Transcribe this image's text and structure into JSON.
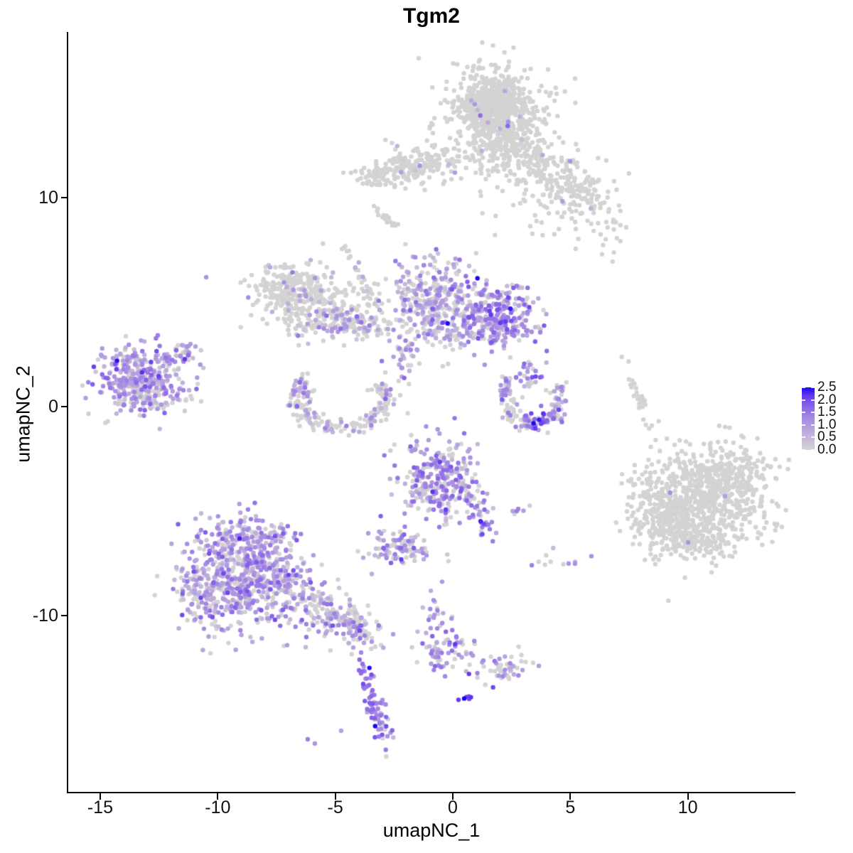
{
  "chart_data": {
    "type": "scatter",
    "title": "Tgm2",
    "xlabel": "umapNC_1",
    "ylabel": "umapNC_2",
    "x_ticks": [
      {
        "label": "-15",
        "value": -15
      },
      {
        "label": "-10",
        "value": -10
      },
      {
        "label": "-5",
        "value": -5
      },
      {
        "label": "0",
        "value": 0
      },
      {
        "label": "5",
        "value": 5
      },
      {
        "label": "10",
        "value": 10
      }
    ],
    "y_ticks": [
      {
        "label": "10",
        "value": 10
      },
      {
        "label": "0",
        "value": 0
      },
      {
        "label": "-10",
        "value": -10
      }
    ],
    "xlim": [
      -16.4,
      14.6
    ],
    "ylim": [
      -18.5,
      17.9
    ],
    "grid": false,
    "legend_position": "right",
    "legend": {
      "breaks": [
        {
          "label": "2.5",
          "value": 2.5
        },
        {
          "label": "2.0",
          "value": 2.0
        },
        {
          "label": "1.5",
          "value": 1.5
        },
        {
          "label": "1.0",
          "value": 1.0
        },
        {
          "label": "0.5",
          "value": 0.5
        },
        {
          "label": "0.0",
          "value": 0.0
        }
      ],
      "value_min": 0.0,
      "value_max": 2.5,
      "low_color": "#D3D3D3",
      "high_color": "#1A05F5",
      "gradient_stops": [
        {
          "t": 0.0,
          "color": "#D3D3D3"
        },
        {
          "t": 0.25,
          "color": "#C0B2DC"
        },
        {
          "t": 0.5,
          "color": "#A68BE2"
        },
        {
          "t": 0.75,
          "color": "#8059EA"
        },
        {
          "t": 0.875,
          "color": "#6236F0"
        },
        {
          "t": 1.0,
          "color": "#1A05F5"
        }
      ]
    },
    "point_radius_px": 3.2,
    "clusters": [
      {
        "name": "top-main",
        "n": 620,
        "x": 1.75,
        "y": 14.3,
        "sx": 0.8,
        "sy": 0.8,
        "p0": 0.99
      },
      {
        "name": "top-main-fringe",
        "n": 150,
        "x": 1.8,
        "y": 14.0,
        "sx": 1.5,
        "sy": 1.3,
        "p0": 0.98
      },
      {
        "name": "top-lower",
        "n": 170,
        "x": 2.4,
        "y": 12.2,
        "sx": 0.8,
        "sy": 0.9,
        "p0": 0.975
      },
      {
        "name": "top-left-arm",
        "n": 200,
        "x": -1.4,
        "y": 11.55,
        "sx": 1.35,
        "sy": 0.42,
        "rot": 10,
        "p0": 0.975
      },
      {
        "name": "top-left-arm-tip",
        "n": 35,
        "x": -3.2,
        "y": 11.0,
        "sx": 0.45,
        "sy": 0.3,
        "p0": 1
      },
      {
        "name": "top-right-arm",
        "n": 230,
        "x": 4.6,
        "y": 10.9,
        "sx": 1.5,
        "sy": 0.6,
        "rot": -44,
        "p0": 0.985
      },
      {
        "name": "top-right-sparse",
        "n": 55,
        "x": 4.9,
        "y": 9.3,
        "sx": 1.4,
        "sy": 0.9,
        "p0": 1
      },
      {
        "name": "top-sliver",
        "n": 22,
        "x": -2.7,
        "y": 8.85,
        "sx": 0.42,
        "sy": 0.1,
        "rot": -40,
        "p0": 1
      },
      {
        "name": "midleft-main",
        "n": 260,
        "x": -6.6,
        "y": 5.25,
        "sx": 0.95,
        "sy": 0.8,
        "p0": 0.9,
        "mean": 0.8
      },
      {
        "name": "midleft-top",
        "n": 55,
        "x": -6.9,
        "y": 6.0,
        "sx": 0.75,
        "sy": 0.28,
        "p0": 0.92
      },
      {
        "name": "midleft-arm",
        "n": 75,
        "x": -5.0,
        "y": 4.45,
        "sx": 0.95,
        "sy": 0.3,
        "rot": -22,
        "p0": 0.78,
        "mean": 0.8
      },
      {
        "name": "diag-trail",
        "n": 28,
        "x": -4.1,
        "y": 6.5,
        "sx": 0.95,
        "sy": 0.12,
        "rot": -63,
        "p0": 0.93
      },
      {
        "name": "diag-trail2",
        "n": 26,
        "x": -3.6,
        "y": 5.0,
        "sx": 0.45,
        "sy": 0.55,
        "p0": 0.85,
        "mean": 0.7
      },
      {
        "name": "band-mixed",
        "n": 105,
        "x": -4.5,
        "y": 3.9,
        "sx": 1.05,
        "sy": 0.4,
        "p0": 0.5,
        "mean": 0.85
      },
      {
        "name": "bowl",
        "shape": "arc",
        "n": 190,
        "x": -4.7,
        "y": 0.3,
        "rx": 1.85,
        "ry": 1.3,
        "a0": 142,
        "a1": 395,
        "p0": 0.66,
        "mean": 0.8
      },
      {
        "name": "bowl-left-tip",
        "n": 22,
        "x": -6.3,
        "y": 1.0,
        "sx": 0.3,
        "sy": 0.35,
        "p0": 0.4,
        "mean": 1.0
      },
      {
        "name": "center-main",
        "n": 330,
        "x": -0.8,
        "y": 5.1,
        "sx": 0.95,
        "sy": 1.05,
        "p0": 0.45,
        "mean": 0.9
      },
      {
        "name": "center-right",
        "n": 260,
        "x": 1.9,
        "y": 4.3,
        "sx": 0.85,
        "sy": 0.75,
        "p0": 0.18,
        "mean": 1.15,
        "sd": 0.5
      },
      {
        "name": "center-bridge",
        "n": 70,
        "x": 0.3,
        "y": 3.7,
        "sx": 1.0,
        "sy": 0.35,
        "p0": 0.4,
        "mean": 1.0
      },
      {
        "name": "center-downtrail",
        "n": 42,
        "x": -2.1,
        "y": 2.3,
        "sx": 0.3,
        "sy": 0.85,
        "p0": 0.45,
        "mean": 0.9
      },
      {
        "name": "right-crescent",
        "shape": "arc",
        "n": 135,
        "x": 3.4,
        "y": 0.5,
        "rx": 1.2,
        "ry": 1.35,
        "a0": 136,
        "a1": 381,
        "p0": 0.42,
        "mean": 1.0
      },
      {
        "name": "right-crescent-blue",
        "n": 26,
        "x": 3.6,
        "y": -0.5,
        "sx": 0.55,
        "sy": 0.22,
        "p0": 0.08,
        "mean": 1.8,
        "sd": 0.5
      },
      {
        "name": "right-crescent-top",
        "n": 28,
        "x": 3.3,
        "y": 1.45,
        "sx": 0.33,
        "sy": 0.38,
        "p0": 0.35,
        "mean": 1.1
      },
      {
        "name": "left-main",
        "n": 310,
        "x": -13.3,
        "y": 1.45,
        "sx": 0.95,
        "sy": 0.8,
        "p0": 0.24,
        "mean": 0.9,
        "sd": 0.5
      },
      {
        "name": "left-arm",
        "n": 40,
        "x": -11.7,
        "y": 2.45,
        "sx": 0.6,
        "sy": 0.2,
        "rot": 25,
        "p0": 0.3,
        "mean": 1.0
      },
      {
        "name": "left-bottom",
        "n": 70,
        "x": -13.0,
        "y": 0.35,
        "sx": 1.0,
        "sy": 0.3,
        "p0": 0.5,
        "mean": 0.7
      },
      {
        "name": "right-strip",
        "n": 26,
        "x": 8.0,
        "y": 0.2,
        "sx": 0.9,
        "sy": 0.11,
        "rot": -69,
        "p0": 1
      },
      {
        "name": "farright-main",
        "n": 580,
        "x": 10.5,
        "y": -4.6,
        "sx": 1.45,
        "sy": 1.2,
        "p0": 0.998
      },
      {
        "name": "farright-ne",
        "n": 210,
        "x": 11.6,
        "y": -3.3,
        "sx": 0.95,
        "sy": 0.7,
        "p0": 0.998
      },
      {
        "name": "farright-w",
        "n": 170,
        "x": 8.95,
        "y": -5.2,
        "sx": 0.75,
        "sy": 0.85,
        "p0": 0.998
      },
      {
        "name": "farright-s",
        "n": 120,
        "x": 10.3,
        "y": -6.4,
        "sx": 1.05,
        "sy": 0.5,
        "p0": 0.998
      },
      {
        "name": "cbottom-main",
        "n": 280,
        "x": -0.5,
        "y": -3.5,
        "sx": 0.9,
        "sy": 0.95,
        "p0": 0.28,
        "mean": 1.0,
        "sd": 0.5
      },
      {
        "name": "cbottom-tail",
        "n": 46,
        "x": 0.85,
        "y": -4.9,
        "sx": 0.85,
        "sy": 0.2,
        "rot": -58,
        "p0": 0.2,
        "mean": 1.3
      },
      {
        "name": "cbottom-pair",
        "n": 6,
        "x": 2.65,
        "y": -5.0,
        "sx": 0.22,
        "sy": 0.13,
        "p0": 0.1,
        "mean": 1.3
      },
      {
        "name": "small-left",
        "n": 88,
        "x": -2.45,
        "y": -6.8,
        "sx": 0.72,
        "sy": 0.52,
        "p0": 0.42,
        "mean": 0.9
      },
      {
        "name": "sparse-midright",
        "n": 10,
        "x": 4.6,
        "y": -7.3,
        "sx": 0.6,
        "sy": 0.28,
        "p0": 0.55,
        "mean": 0.8
      },
      {
        "name": "bottomleft-core",
        "n": 560,
        "x": -8.7,
        "y": -8.2,
        "sx": 1.35,
        "sy": 1.25,
        "p0": 0.25,
        "mean": 0.95,
        "sd": 0.5
      },
      {
        "name": "bottomleft-top",
        "n": 150,
        "x": -8.9,
        "y": -6.4,
        "sx": 0.9,
        "sy": 0.65,
        "p0": 0.3,
        "mean": 0.9
      },
      {
        "name": "bottomleft-left",
        "n": 90,
        "x": -10.6,
        "y": -9.0,
        "sx": 0.6,
        "sy": 0.8,
        "p0": 0.35,
        "mean": 0.85
      },
      {
        "name": "bottomleft-tail",
        "n": 170,
        "x": -5.6,
        "y": -9.7,
        "sx": 1.3,
        "sy": 0.5,
        "rot": -32,
        "p0": 0.4,
        "mean": 0.9
      },
      {
        "name": "tail-tip",
        "n": 55,
        "x": -4.3,
        "y": -10.4,
        "sx": 0.5,
        "sy": 0.33,
        "rot": -25,
        "p0": 0.68,
        "mean": 0.8
      },
      {
        "name": "tip-dots",
        "n": 8,
        "x": -3.8,
        "y": -10.8,
        "sx": 0.25,
        "sy": 0.2,
        "p0": 0.2,
        "mean": 1.2
      },
      {
        "name": "trail-mid",
        "n": 22,
        "x": -0.7,
        "y": -10.2,
        "sx": 0.33,
        "sy": 0.75,
        "p0": 0.35,
        "mean": 0.9
      },
      {
        "name": "trail-cluster",
        "n": 68,
        "x": -0.15,
        "y": -11.7,
        "sx": 0.62,
        "sy": 0.55,
        "p0": 0.28,
        "mean": 1.0
      },
      {
        "name": "trail-right",
        "n": 48,
        "x": 2.2,
        "y": -12.5,
        "sx": 0.55,
        "sy": 0.38,
        "p0": 0.5,
        "mean": 1.0
      },
      {
        "name": "banana",
        "n": 74,
        "x": -3.38,
        "y": -14.25,
        "sx": 0.95,
        "sy": 0.2,
        "rot": -74,
        "p0": 0.08,
        "mean": 1.4,
        "sd": 0.5
      },
      {
        "name": "blue-pair",
        "n": 6,
        "x": 0.6,
        "y": -14.0,
        "sx": 0.17,
        "sy": 0.2,
        "p0": 0,
        "mean": 2.0,
        "sd": 0.3
      }
    ],
    "singles": [
      [
        -10.49,
        6.19,
        1.1
      ],
      [
        0.09,
        11.2,
        1.0
      ],
      [
        4.66,
        9.83,
        1.0
      ],
      [
        5.23,
        7.55,
        0
      ],
      [
        6.8,
        6.94,
        0
      ],
      [
        -3.02,
        2.18,
        1.5
      ],
      [
        9.25,
        -4.12,
        1.2
      ],
      [
        11.58,
        -4.29,
        0.9
      ],
      [
        10.01,
        -6.5,
        1.1
      ],
      [
        1.18,
        -5.48,
        2.3
      ],
      [
        1.32,
        -5.62,
        2.0
      ],
      [
        -1.27,
        -7.01,
        1.3
      ],
      [
        -1.12,
        -7.12,
        1.1
      ],
      [
        -2.63,
        -7.48,
        1.8
      ],
      [
        3.36,
        -7.59,
        1.4
      ],
      [
        -3.9,
        -11.77,
        1.3
      ],
      [
        -3.84,
        -12.31,
        1.6
      ],
      [
        -4.75,
        -15.51,
        0.9
      ],
      [
        -6.17,
        -15.92,
        1.4
      ],
      [
        -5.87,
        -16.12,
        1.1
      ],
      [
        1.3,
        -12.15,
        1.2
      ]
    ]
  }
}
